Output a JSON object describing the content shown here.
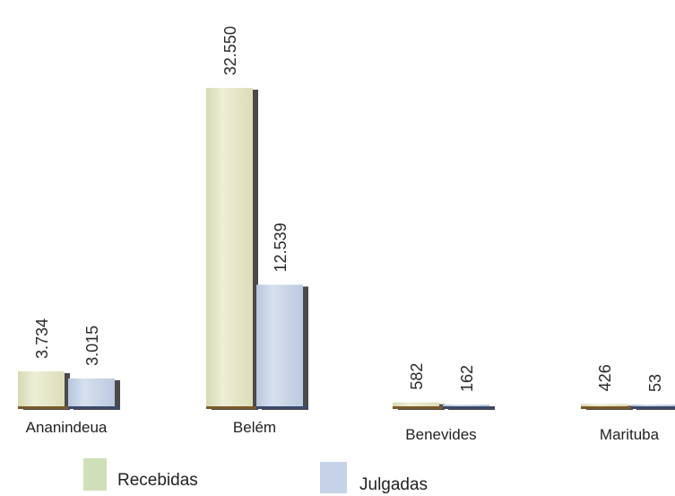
{
  "chart_data": {
    "type": "bar",
    "categories": [
      "Ananindeua",
      "Belém",
      "Benevides",
      "Marituba"
    ],
    "series": [
      {
        "name": "Recebidas",
        "values": [
          3734,
          32550,
          582,
          426
        ],
        "labels": [
          "3.734",
          "32.550",
          "582",
          "426"
        ],
        "color": "#e3e4c4"
      },
      {
        "name": "Julgadas",
        "values": [
          3015,
          12539,
          162,
          53
        ],
        "labels": [
          "3.015",
          "12.539",
          "162",
          "53"
        ],
        "color": "#c6d2e6"
      }
    ],
    "legend_position": "bottom",
    "grid": false,
    "ylim": [
      0,
      32550
    ]
  }
}
